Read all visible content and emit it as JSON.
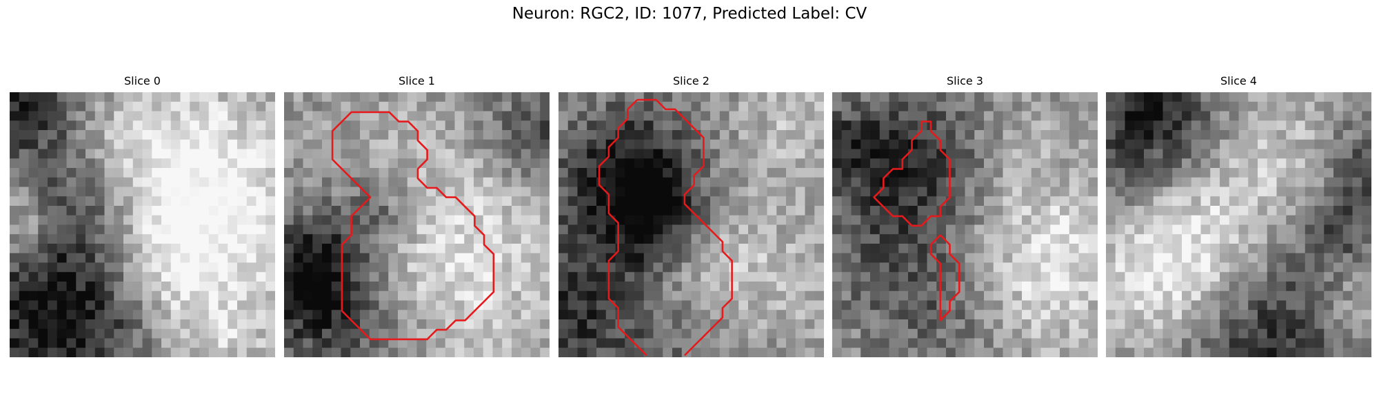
{
  "figure": {
    "title": "Neuron: RGC2, ID: 1077, Predicted Label: CV"
  },
  "contour_color": "#e41a1c",
  "slices": [
    {
      "title": "Slice 0",
      "contours": []
    },
    {
      "title": "Slice 1",
      "contours": [
        [
          [
            8.1,
            2.1
          ],
          [
            11.1,
            2.1
          ],
          [
            12.1,
            3.1
          ],
          [
            13.1,
            3.1
          ],
          [
            14.1,
            4.1
          ],
          [
            14.1,
            5.1
          ],
          [
            15.1,
            6.1
          ],
          [
            15.1,
            7.1
          ],
          [
            14.1,
            8.1
          ],
          [
            14.1,
            9.1
          ],
          [
            15.1,
            10.1
          ],
          [
            16.1,
            10.1
          ],
          [
            17.1,
            11.1
          ],
          [
            18.1,
            11.1
          ],
          [
            19.1,
            12.1
          ],
          [
            20.1,
            13.1
          ],
          [
            20.1,
            14.1
          ],
          [
            21.1,
            15.1
          ],
          [
            21.1,
            16.1
          ],
          [
            22.1,
            17.1
          ],
          [
            22.1,
            21.1
          ],
          [
            21.1,
            22.1
          ],
          [
            20.1,
            23.1
          ],
          [
            19.1,
            24.1
          ],
          [
            18.1,
            24.1
          ],
          [
            17.1,
            25.1
          ],
          [
            16.1,
            25.1
          ],
          [
            15.1,
            26.1
          ],
          [
            9.1,
            26.1
          ],
          [
            8.1,
            25.1
          ],
          [
            7.1,
            24.1
          ],
          [
            6.1,
            23.1
          ],
          [
            6.1,
            16.1
          ],
          [
            7.1,
            15.1
          ],
          [
            7.1,
            13.1
          ],
          [
            8.1,
            12.1
          ],
          [
            9.1,
            11.1
          ],
          [
            8.1,
            10.1
          ],
          [
            7.1,
            9.1
          ],
          [
            6.1,
            8.1
          ],
          [
            5.1,
            7.1
          ],
          [
            5.1,
            4.1
          ],
          [
            6.1,
            3.1
          ],
          [
            7.1,
            2.1
          ],
          [
            8.1,
            2.1
          ]
        ]
      ]
    },
    {
      "title": "Slice 2",
      "contours": [
        [
          [
            8.3,
            0.8
          ],
          [
            10.3,
            0.8
          ],
          [
            11.3,
            1.8
          ],
          [
            12.3,
            1.8
          ],
          [
            13.3,
            2.8
          ],
          [
            14.3,
            3.8
          ],
          [
            15.3,
            4.8
          ],
          [
            15.3,
            7.8
          ],
          [
            14.3,
            8.8
          ],
          [
            14.3,
            9.8
          ],
          [
            13.3,
            10.8
          ],
          [
            13.3,
            11.8
          ],
          [
            14.3,
            12.8
          ],
          [
            15.3,
            13.8
          ],
          [
            16.3,
            14.8
          ],
          [
            17.3,
            15.8
          ],
          [
            17.3,
            16.8
          ],
          [
            18.3,
            17.8
          ],
          [
            18.3,
            21.8
          ],
          [
            17.3,
            22.8
          ],
          [
            17.3,
            23.8
          ],
          [
            16.3,
            24.8
          ],
          [
            15.3,
            25.8
          ],
          [
            14.3,
            26.8
          ],
          [
            13.3,
            27.8
          ]
        ],
        [
          [
            9.3,
            27.8
          ],
          [
            8.3,
            26.8
          ],
          [
            7.3,
            25.8
          ],
          [
            6.3,
            24.8
          ],
          [
            6.3,
            22.8
          ],
          [
            5.3,
            21.8
          ],
          [
            5.3,
            17.8
          ],
          [
            6.3,
            16.8
          ],
          [
            6.3,
            13.8
          ],
          [
            5.3,
            12.8
          ],
          [
            5.3,
            10.8
          ],
          [
            4.3,
            9.8
          ],
          [
            4.3,
            7.8
          ],
          [
            5.3,
            6.8
          ],
          [
            5.3,
            5.8
          ],
          [
            6.3,
            4.8
          ],
          [
            6.3,
            3.8
          ],
          [
            7.3,
            2.8
          ],
          [
            7.3,
            1.8
          ],
          [
            8.3,
            0.8
          ]
        ]
      ]
    },
    {
      "title": "Slice 3",
      "contours": [
        [
          [
            9.4,
            3.1
          ],
          [
            10.4,
            3.1
          ],
          [
            10.4,
            4.1
          ],
          [
            11.4,
            5.1
          ],
          [
            11.4,
            6.1
          ],
          [
            12.4,
            7.1
          ],
          [
            12.4,
            11.1
          ],
          [
            11.4,
            12.1
          ],
          [
            11.4,
            13.1
          ],
          [
            10.4,
            13.1
          ],
          [
            9.4,
            14.1
          ],
          [
            8.4,
            14.1
          ],
          [
            7.4,
            13.1
          ],
          [
            6.4,
            13.1
          ],
          [
            5.4,
            12.1
          ],
          [
            4.4,
            11.1
          ],
          [
            5.4,
            10.1
          ],
          [
            5.4,
            9.1
          ],
          [
            6.4,
            8.1
          ],
          [
            7.4,
            8.1
          ],
          [
            7.4,
            7.1
          ],
          [
            8.4,
            6.1
          ],
          [
            8.4,
            5.1
          ],
          [
            9.4,
            4.1
          ],
          [
            9.4,
            3.1
          ]
        ],
        [
          [
            11.4,
            15.1
          ],
          [
            12.4,
            16.1
          ],
          [
            12.4,
            17.1
          ],
          [
            13.4,
            18.1
          ],
          [
            13.4,
            21.1
          ],
          [
            12.4,
            22.1
          ],
          [
            12.4,
            23.1
          ],
          [
            11.4,
            24.1
          ],
          [
            11.4,
            22.1
          ],
          [
            11.4,
            19.1
          ],
          [
            11.4,
            18.1
          ],
          [
            10.4,
            17.1
          ],
          [
            10.4,
            16.1
          ],
          [
            11.4,
            15.1
          ]
        ]
      ]
    },
    {
      "title": "Slice 4",
      "contours": []
    }
  ]
}
